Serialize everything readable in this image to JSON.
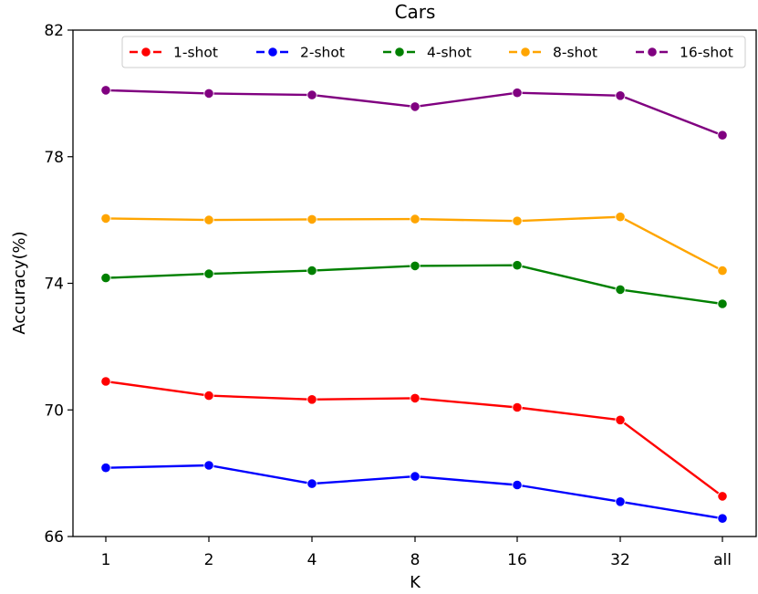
{
  "chart_data": {
    "type": "line",
    "title": "Cars",
    "xlabel": "K",
    "ylabel": "Accuracy(%)",
    "categories": [
      "1",
      "2",
      "4",
      "8",
      "16",
      "32",
      "all"
    ],
    "ylim": [
      66,
      82
    ],
    "yticks": [
      66,
      70,
      74,
      78,
      82
    ],
    "legend_position": "top-right",
    "grid": false,
    "series": [
      {
        "name": "1-shot",
        "color": "#ff0000",
        "values": [
          70.9,
          70.45,
          70.33,
          70.37,
          70.08,
          69.68,
          67.27
        ]
      },
      {
        "name": "2-shot",
        "color": "#0000ff",
        "values": [
          68.17,
          68.25,
          67.67,
          67.9,
          67.63,
          67.1,
          66.57
        ]
      },
      {
        "name": "4-shot",
        "color": "#008000",
        "values": [
          74.17,
          74.3,
          74.4,
          74.55,
          74.57,
          73.8,
          73.35
        ]
      },
      {
        "name": "8-shot",
        "color": "#ffa500",
        "values": [
          76.05,
          76.0,
          76.02,
          76.03,
          75.97,
          76.1,
          74.4
        ]
      },
      {
        "name": "16-shot",
        "color": "#800080",
        "values": [
          80.1,
          80.0,
          79.95,
          79.58,
          80.02,
          79.93,
          78.68
        ]
      }
    ]
  }
}
